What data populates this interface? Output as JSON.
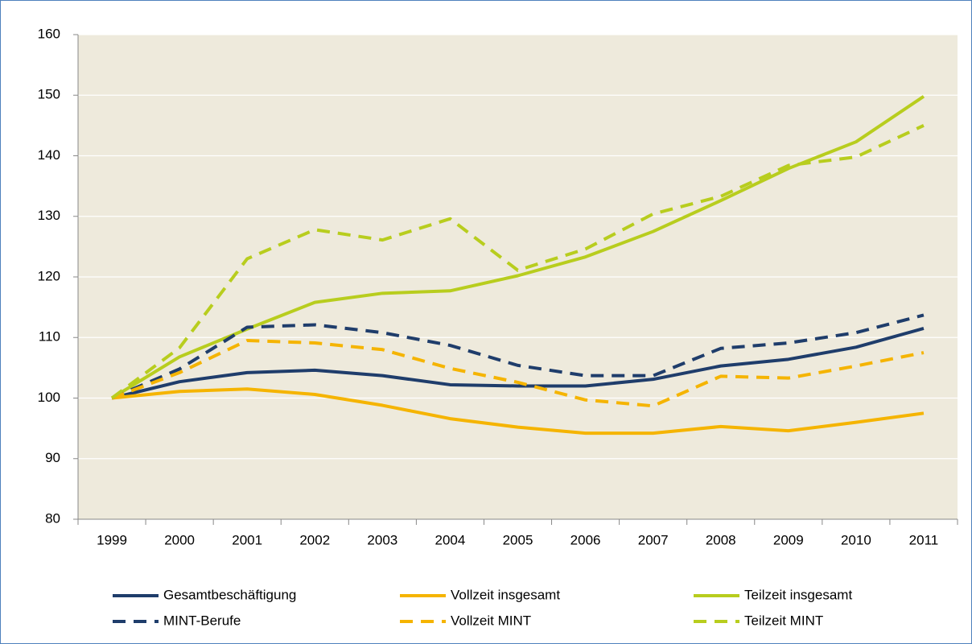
{
  "chart_data": {
    "type": "line",
    "categories": [
      "1999",
      "2000",
      "2001",
      "2002",
      "2003",
      "2004",
      "2005",
      "2006",
      "2007",
      "2008",
      "2009",
      "2010",
      "2011"
    ],
    "series": [
      {
        "name": "Gesamtbeschäftigung",
        "color": "#1f3d6b",
        "dashed": false,
        "values": [
          100,
          102.7,
          104.2,
          104.6,
          103.7,
          102.2,
          102,
          102,
          103.1,
          105.3,
          106.4,
          108.4,
          111.5
        ]
      },
      {
        "name": "Vollzeit insgesamt",
        "color": "#f5b400",
        "dashed": false,
        "values": [
          100,
          101.1,
          101.5,
          100.6,
          98.8,
          96.6,
          95.2,
          94.2,
          94.2,
          95.3,
          94.6,
          96,
          97.5
        ]
      },
      {
        "name": "Teilzeit insgesamt",
        "color": "#b8cd1e",
        "dashed": false,
        "values": [
          100,
          106.8,
          111.4,
          115.8,
          117.3,
          117.7,
          120.2,
          123.3,
          127.5,
          132.6,
          137.9,
          142.3,
          149.8
        ]
      },
      {
        "name": "MINT-Berufe",
        "color": "#1f3d6b",
        "dashed": true,
        "values": [
          100,
          104.8,
          111.7,
          112.1,
          110.8,
          108.7,
          105.4,
          103.7,
          103.7,
          108.2,
          109.1,
          110.8,
          113.7
        ]
      },
      {
        "name": "Vollzeit MINT",
        "color": "#f5b400",
        "dashed": true,
        "values": [
          100,
          104.2,
          109.5,
          109.1,
          108,
          104.9,
          102.6,
          99.7,
          98.7,
          103.6,
          103.3,
          105.3,
          107.5
        ]
      },
      {
        "name": "Teilzeit MINT",
        "color": "#b8cd1e",
        "dashed": true,
        "values": [
          100,
          108.3,
          123,
          127.8,
          126.1,
          129.6,
          121.1,
          124.6,
          130.4,
          133.3,
          138.4,
          139.8,
          145
        ]
      }
    ],
    "ylim": [
      80,
      160
    ],
    "yticks": [
      80,
      90,
      100,
      110,
      120,
      130,
      140,
      150,
      160
    ],
    "grid": true,
    "plot_background": "#eeeadc"
  }
}
